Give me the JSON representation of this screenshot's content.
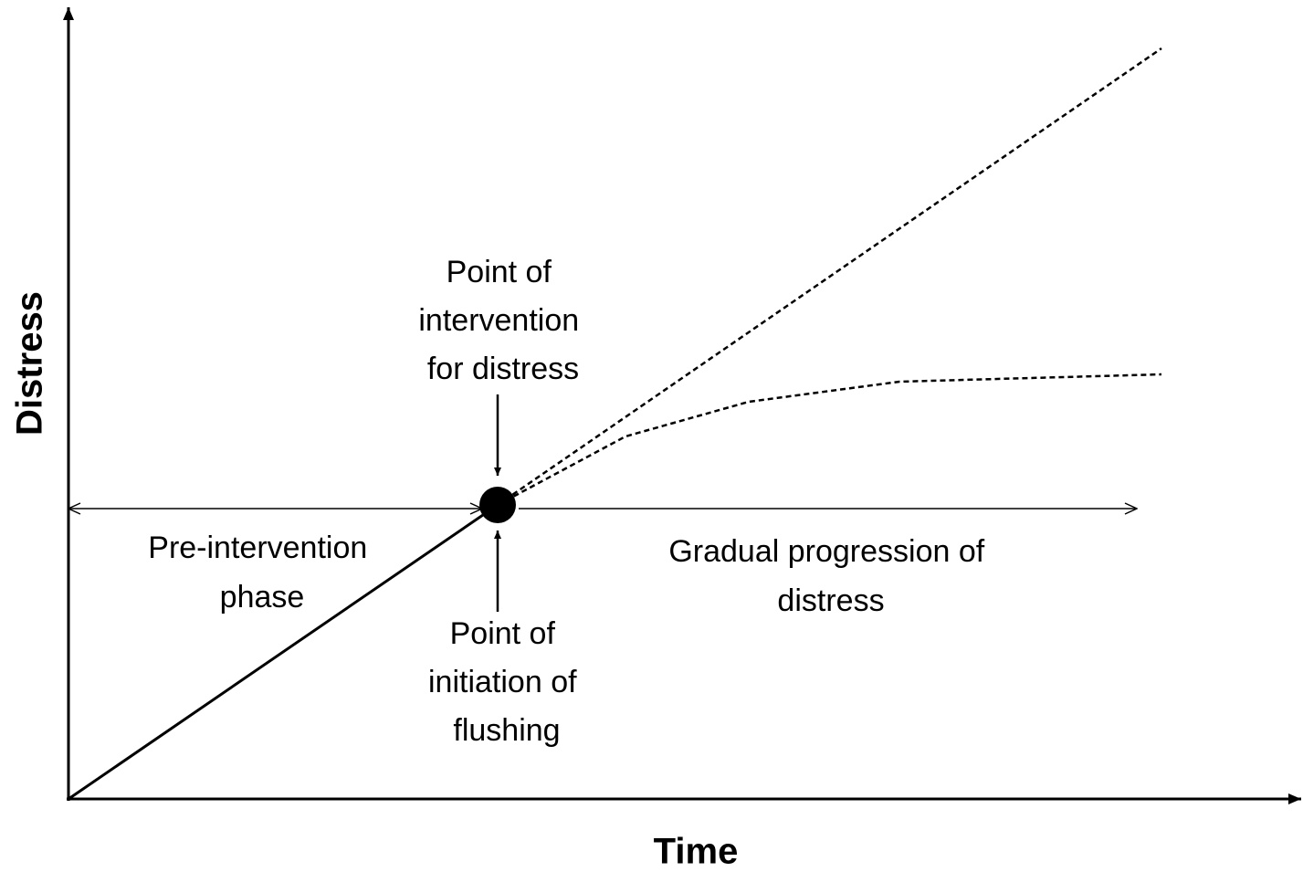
{
  "axes": {
    "x_label": "Time",
    "y_label": "Distress"
  },
  "annotations": {
    "intervention": [
      "Point of",
      "intervention",
      "for distress"
    ],
    "pre_phase": [
      "Pre-intervention",
      "phase"
    ],
    "flushing": [
      "Point of",
      "initiation of",
      "flushing"
    ],
    "progression": [
      "Gradual progression of",
      "distress"
    ]
  }
}
